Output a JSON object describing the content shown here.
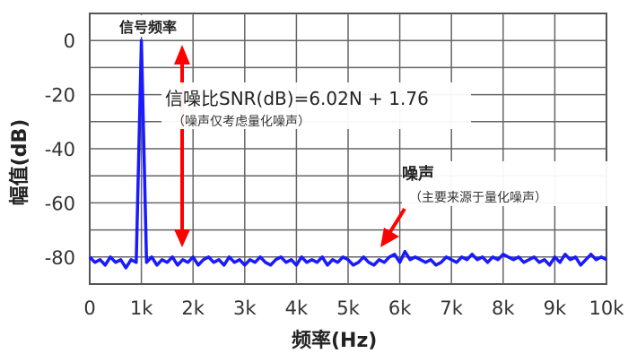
{
  "chart_data": {
    "type": "line",
    "xlabel": "频率(Hz)",
    "ylabel": "幅值(dB)",
    "xlim": [
      0,
      10000
    ],
    "ylim": [
      -90,
      10
    ],
    "grid": true,
    "x_ticks": [
      0,
      1000,
      2000,
      3000,
      4000,
      5000,
      6000,
      7000,
      8000,
      9000,
      10000
    ],
    "x_tick_labels": [
      "0",
      "1k",
      "2k",
      "3k",
      "4k",
      "5k",
      "6k",
      "7k",
      "8k",
      "9k",
      "10k"
    ],
    "y_ticks": [
      0,
      -20,
      -40,
      -60,
      -80
    ],
    "y_tick_labels": [
      "0",
      "-20",
      "-40",
      "-60",
      "-80"
    ],
    "series": [
      {
        "color": "#1a1aff",
        "x_step": 100,
        "values": [
          -80,
          -82,
          -81,
          -83,
          -80,
          -82,
          -81,
          -84,
          -81,
          -82,
          0,
          -82,
          -80,
          -83,
          -81,
          -82,
          -80,
          -83,
          -81,
          -82,
          -80,
          -83,
          -81,
          -80,
          -82,
          -81,
          -83,
          -80,
          -82,
          -81,
          -83,
          -81,
          -82,
          -80,
          -82,
          -83,
          -81,
          -80,
          -82,
          -81,
          -83,
          -80,
          -82,
          -81,
          -82,
          -80,
          -83,
          -81,
          -82,
          -80,
          -81,
          -83,
          -82,
          -80,
          -82,
          -83,
          -81,
          -82,
          -80,
          -79,
          -82,
          -78,
          -81,
          -80,
          -81,
          -82,
          -81,
          -83,
          -82,
          -80,
          -81,
          -82,
          -80,
          -81,
          -79,
          -81,
          -80,
          -82,
          -80,
          -81,
          -79,
          -80,
          -81,
          -80,
          -82,
          -81,
          -80,
          -82,
          -81,
          -83,
          -80,
          -82,
          -79,
          -81,
          -80,
          -83,
          -81,
          -79,
          -81,
          -80,
          -81
        ]
      }
    ],
    "annotations": {
      "signal_label": "信号频率",
      "snr_formula": "信噪比SNR(dB)=6.02N + 1.76",
      "snr_note": "（噪声仅考虑量化噪声）",
      "noise_label": "噪声",
      "noise_note": "（主要来源于量化噪声）",
      "arrow_color": "#ff0000"
    }
  }
}
